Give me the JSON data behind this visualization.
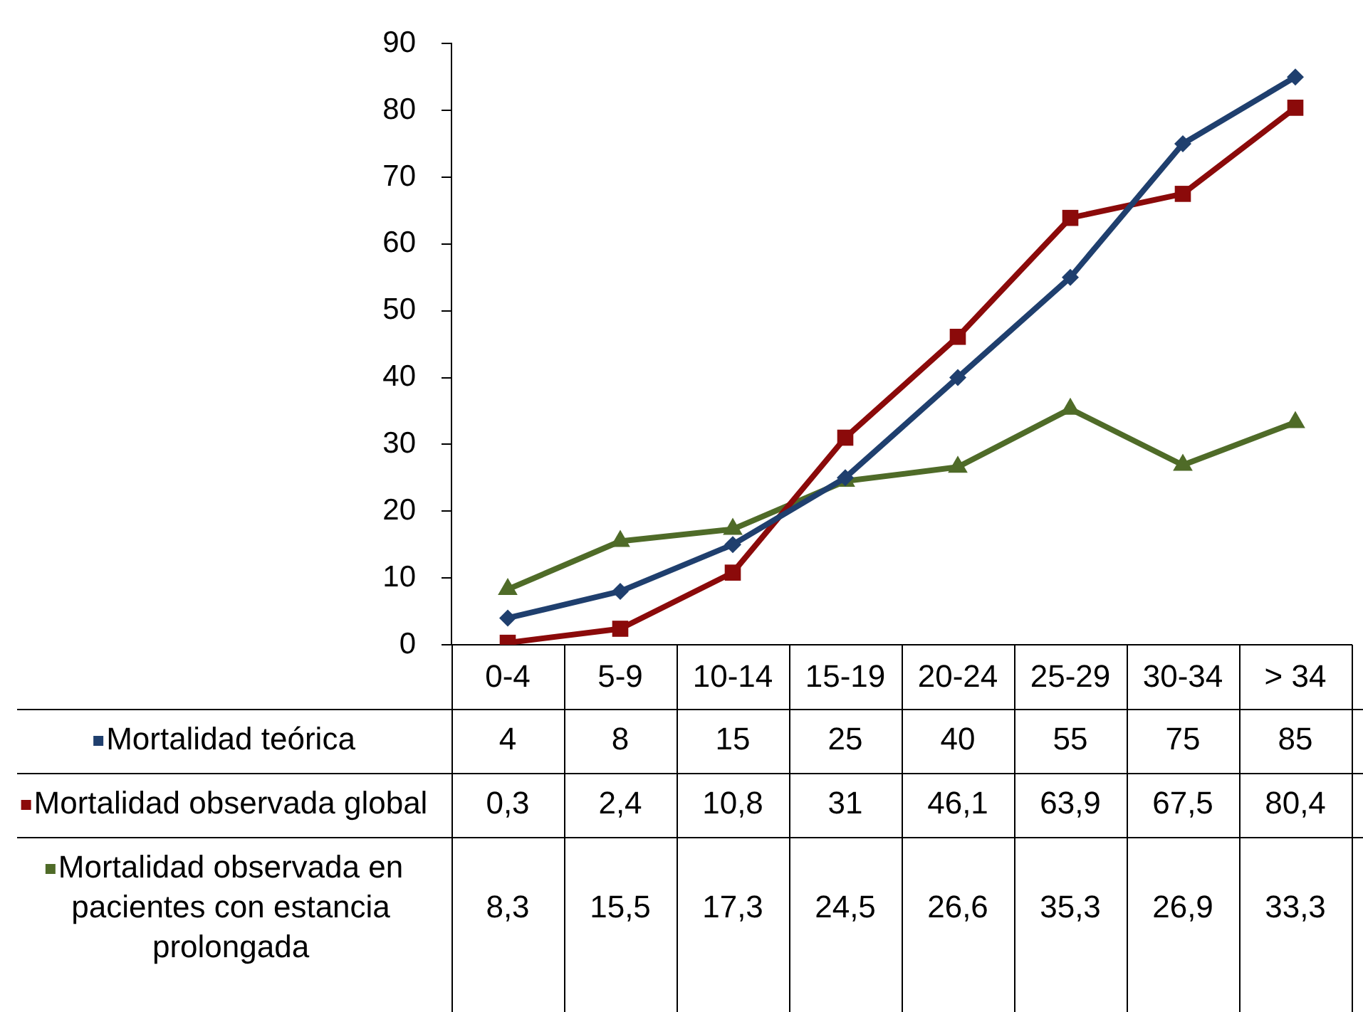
{
  "chart_data": {
    "type": "line",
    "categories": [
      "0-4",
      "5-9",
      "10-14",
      "15-19",
      "20-24",
      "25-29",
      "30-34",
      "> 34"
    ],
    "series": [
      {
        "name": "Mortalidad teórica",
        "color": "#1f3f6e",
        "marker": "diamond",
        "values": [
          4,
          8,
          15,
          25,
          40,
          55,
          75,
          85
        ],
        "value_labels": [
          "4",
          "8",
          "15",
          "25",
          "40",
          "55",
          "75",
          "85"
        ]
      },
      {
        "name": "Mortalidad observada global",
        "color": "#8b0a0a",
        "marker": "square",
        "values": [
          0.3,
          2.4,
          10.8,
          31,
          46.1,
          63.9,
          67.5,
          80.4
        ],
        "value_labels": [
          "0,3",
          "2,4",
          "10,8",
          "31",
          "46,1",
          "63,9",
          "67,5",
          "80,4"
        ]
      },
      {
        "name": "Mortalidad observada en pacientes con estancia prolongada",
        "color": "#4f6b28",
        "marker": "triangle",
        "values": [
          8.3,
          15.5,
          17.3,
          24.5,
          26.6,
          35.3,
          26.9,
          33.3
        ],
        "value_labels": [
          "8,3",
          "15,5",
          "17,3",
          "24,5",
          "26,6",
          "35,3",
          "26,9",
          "33,3"
        ]
      }
    ],
    "ylim": [
      0,
      90
    ],
    "yticks": [
      0,
      10,
      20,
      30,
      40,
      50,
      60,
      70,
      80,
      90
    ],
    "grid": false,
    "legend": "bottom",
    "line_style": "solid"
  }
}
